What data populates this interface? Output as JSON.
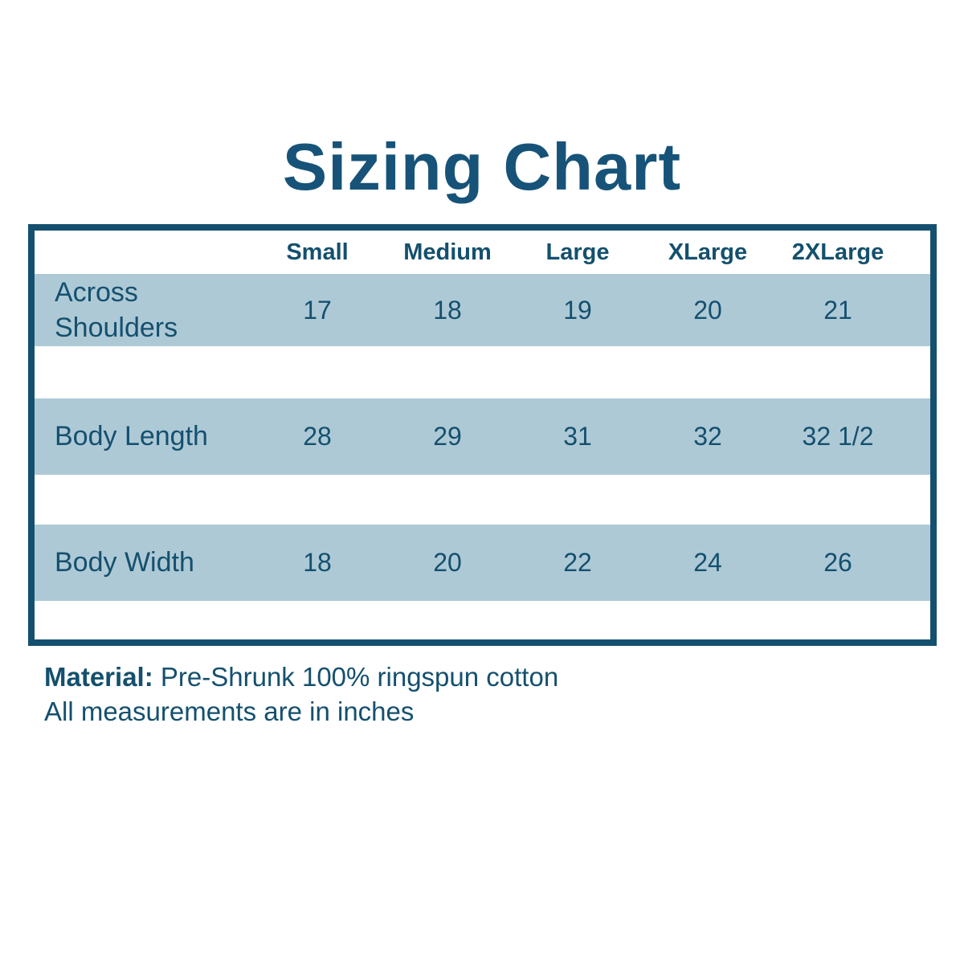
{
  "page": {
    "title": "Sizing Chart"
  },
  "chart_data": {
    "type": "table",
    "title": "Sizing Chart",
    "columns": [
      "Small",
      "Medium",
      "Large",
      "XLarge",
      "2XLarge"
    ],
    "rows": [
      {
        "label": "Across Shoulders",
        "values": [
          "17",
          "18",
          "19",
          "20",
          "21"
        ]
      },
      {
        "label": "Body Length",
        "values": [
          "28",
          "29",
          "31",
          "32",
          "32 1/2"
        ]
      },
      {
        "label": "Body Width",
        "values": [
          "18",
          "20",
          "22",
          "24",
          "26"
        ]
      }
    ],
    "units": "inches",
    "layout": "banded rows, dark teal border, white spacer rows between bands"
  },
  "footer": {
    "material_label": "Material:",
    "material_value": "Pre-Shrunk 100% ringspun cotton",
    "note": "All measurements are in inches"
  },
  "colors": {
    "accent_teal": "#14506e",
    "title_teal": "#175378",
    "band_blue": "#aec9d6",
    "background": "#ffffff"
  }
}
